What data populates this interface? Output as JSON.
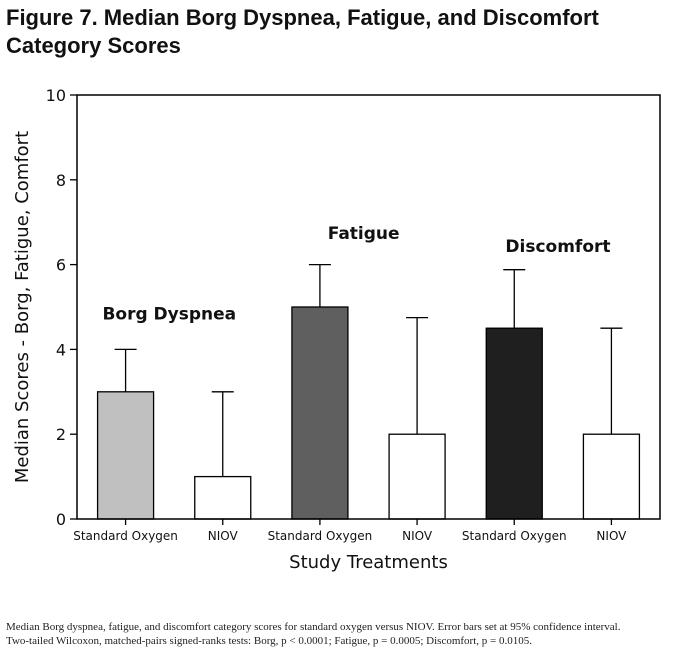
{
  "figure_title": "Figure 7. Median Borg Dyspnea, Fatigue, and Discomfort Category Scores",
  "caption": {
    "line1": "Median Borg dyspnea, fatigue, and discomfort category scores for standard oxygen versus NIOV. Error bars set at 95% confidence interval.",
    "line2": "Two-tailed Wilcoxon, matched-pairs signed-ranks tests: Borg, p < 0.0001; Fatigue, p = 0.0005; Discomfort, p = 0.0105."
  },
  "chart_data": {
    "type": "bar",
    "title": "Figure 7. Median Borg Dyspnea, Fatigue, and Discomfort Category Scores",
    "xlabel": "Study Treatments",
    "ylabel": "Median Scores - Borg, Fatigue, Comfort",
    "ylim": [
      0,
      10
    ],
    "yticks": [
      0,
      2,
      4,
      6,
      8,
      10
    ],
    "grid": false,
    "categories": [
      "Standard Oxygen",
      "NIOV",
      "Standard Oxygen",
      "NIOV",
      "Standard Oxygen",
      "NIOV"
    ],
    "values": [
      3,
      1,
      5,
      2,
      4.5,
      2
    ],
    "error_upper": [
      4,
      3,
      6,
      4.75,
      5.88,
      4.5
    ],
    "colors": [
      "#c0c0c0",
      "#ffffff",
      "#5f5f5f",
      "#ffffff",
      "#1f1f1f",
      "#ffffff"
    ],
    "groups": [
      {
        "label": "Borg Dyspnea",
        "label_y": 4.7
      },
      {
        "label": "Fatigue",
        "label_y": 6.6
      },
      {
        "label": "Discomfort",
        "label_y": 6.3
      }
    ]
  }
}
